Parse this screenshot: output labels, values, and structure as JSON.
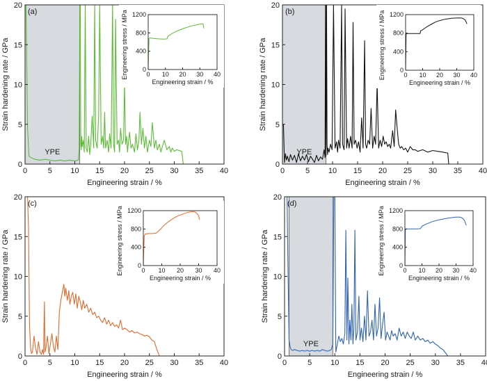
{
  "chart_data": [
    {
      "id": "a",
      "type": "line",
      "panel_label": "(a)",
      "color": "#5cbb35",
      "xlabel": "Engineering strain / %",
      "ylabel": "Strain hardening rate / GPa",
      "xlim": [
        0,
        40
      ],
      "ylim": [
        0,
        20
      ],
      "xticks": [
        "0",
        "5",
        "10",
        "15",
        "20",
        "25",
        "30",
        "35",
        "40"
      ],
      "yticks": [
        "0",
        "5",
        "10",
        "15",
        "20"
      ],
      "shaded_region": {
        "x": [
          0,
          11.0
        ],
        "label": "YPE",
        "color": "#d7dbdf"
      },
      "series": [
        {
          "x": [
            0.2,
            0.5,
            0.8,
            1.2,
            2,
            3,
            4,
            5,
            6,
            7,
            8,
            9,
            10,
            10.7,
            10.9,
            11.0,
            11.1,
            11.2,
            11.3,
            11.4,
            11.5,
            11.7,
            11.9,
            12.1,
            12.3,
            12.5,
            12.8,
            13.0,
            13.2,
            13.5,
            13.8,
            14.0,
            14.2,
            14.5,
            14.8,
            15.0,
            15.3,
            15.6,
            15.8,
            16.0,
            16.2,
            16.5,
            16.8,
            17.0,
            17.3,
            17.6,
            17.8,
            18.0,
            18.2,
            18.5,
            18.8,
            19.0,
            19.2,
            19.5,
            19.8,
            20.0,
            20.2,
            20.4,
            20.6,
            20.8,
            21.0,
            21.3,
            21.6,
            22.0,
            22.3,
            22.6,
            22.9,
            23.1,
            23.4,
            23.7,
            24.0,
            24.3,
            24.6,
            25.0,
            25.3,
            25.6,
            26.0,
            26.3,
            26.6,
            27.0,
            27.3,
            27.6,
            28.0,
            28.5,
            29.0,
            29.3,
            29.6,
            30.0,
            30.5,
            31.0,
            31.5,
            31.8
          ],
          "y": [
            20,
            4.5,
            1.0,
            0.8,
            0.6,
            0.5,
            0.6,
            0.5,
            0.4,
            0.5,
            0.4,
            0.5,
            0.4,
            0.5,
            2.0,
            20,
            20,
            2.5,
            1.8,
            3.5,
            2.2,
            3.0,
            1.5,
            20,
            2.0,
            1.5,
            3.5,
            1.2,
            2.5,
            6.0,
            2.0,
            20,
            3.0,
            2.0,
            6.0,
            20,
            2.5,
            3.5,
            2.0,
            6.5,
            2.0,
            3.0,
            1.5,
            3.8,
            2.0,
            20,
            2.5,
            1.5,
            18.2,
            2.5,
            3.0,
            1.5,
            4.5,
            2.5,
            3.0,
            10.3,
            2.5,
            3.5,
            1.5,
            2.8,
            4.0,
            2.0,
            2.5,
            1.5,
            3.8,
            1.8,
            3.0,
            6.5,
            2.5,
            4.5,
            2.0,
            3.5,
            1.5,
            3.0,
            2.2,
            5.2,
            2.0,
            3.0,
            1.8,
            2.5,
            1.5,
            2.2,
            3.0,
            1.8,
            2.2,
            1.5,
            2.0,
            1.6,
            1.8,
            1.7,
            1.6,
            0
          ]
        }
      ],
      "inset": {
        "xlabel": "Engineering strain / %",
        "ylabel": "Engineering stress / MPa",
        "xlim": [
          0,
          40
        ],
        "ylim": [
          0,
          1200
        ],
        "xticks": [
          "0",
          "10",
          "20",
          "30",
          "40"
        ],
        "yticks": [
          "0",
          "400",
          "800",
          "1200"
        ],
        "x": [
          0,
          0.5,
          1,
          3,
          6,
          9,
          11,
          11.2,
          12,
          14,
          16,
          18,
          20,
          22,
          24,
          26,
          28,
          30,
          31.5,
          32,
          32.3
        ],
        "y": [
          0,
          680,
          690,
          680,
          670,
          665,
          670,
          710,
          740,
          790,
          830,
          860,
          890,
          915,
          940,
          960,
          975,
          990,
          1000,
          985,
          900
        ]
      }
    },
    {
      "id": "b",
      "type": "line",
      "panel_label": "(b)",
      "color": "#111111",
      "xlabel": "Engineering strain / %",
      "ylabel": "Strain hardening rate / GPa",
      "xlim": [
        0,
        40
      ],
      "ylim": [
        0,
        20
      ],
      "xticks": [
        "0",
        "5",
        "10",
        "15",
        "20",
        "25",
        "30",
        "35",
        "40"
      ],
      "yticks": [
        "0",
        "5",
        "10",
        "15",
        "20"
      ],
      "shaded_region": {
        "x": [
          0,
          8.7
        ],
        "label": "YPE",
        "color": "#d7dbdf"
      },
      "series": [
        {
          "x": [
            0.2,
            0.4,
            0.6,
            0.8,
            1.0,
            1.3,
            1.6,
            2.0,
            2.4,
            2.8,
            3.2,
            3.6,
            4.0,
            4.4,
            4.8,
            5.2,
            5.6,
            6.0,
            6.4,
            6.8,
            7.2,
            7.6,
            8.0,
            8.3,
            8.5,
            8.6,
            8.7,
            8.8,
            8.9,
            9.0,
            9.1,
            9.3,
            9.6,
            9.9,
            10.2,
            10.5,
            10.8,
            11.0,
            11.2,
            11.5,
            11.8,
            12.0,
            12.3,
            12.5,
            12.8,
            13.0,
            13.3,
            13.6,
            13.9,
            14.1,
            14.3,
            14.6,
            14.9,
            15.2,
            15.5,
            15.8,
            16.1,
            16.4,
            16.6,
            16.8,
            17.1,
            17.4,
            17.7,
            18.0,
            18.3,
            18.6,
            18.9,
            19.2,
            19.5,
            19.8,
            20.1,
            20.4,
            20.7,
            21.0,
            21.3,
            21.6,
            22.0,
            22.3,
            22.6,
            22.9,
            23.2,
            23.5,
            23.8,
            24.2,
            24.6,
            25.0,
            25.5,
            26.0,
            26.5,
            27.0,
            27.5,
            28,
            29,
            30,
            31,
            32,
            32.8,
            33.0,
            33.2
          ],
          "y": [
            5.0,
            0.2,
            1.3,
            0.5,
            1.0,
            0.3,
            1.2,
            0.5,
            1.1,
            0.2,
            1.3,
            0.4,
            1.0,
            0.5,
            1.2,
            0.3,
            1.0,
            0.6,
            0.2,
            1.1,
            0.4,
            0.9,
            0.6,
            1.8,
            0.8,
            20,
            1.0,
            20,
            2.5,
            1.2,
            2.0,
            1.5,
            2.5,
            1.8,
            20,
            2.0,
            2.8,
            1.5,
            3.0,
            2.0,
            20,
            2.5,
            1.8,
            19.5,
            2.0,
            3.2,
            2.0,
            3.5,
            2.0,
            17.8,
            2.5,
            3.0,
            2.0,
            2.8,
            1.5,
            5.8,
            2.0,
            15.5,
            2.5,
            2.0,
            3.0,
            2.5,
            7.0,
            2.0,
            3.5,
            2.5,
            10.2,
            2.0,
            3.0,
            2.2,
            3.5,
            2.5,
            2.8,
            2.2,
            2.5,
            2.0,
            4.2,
            2.2,
            6.8,
            4.5,
            2.5,
            2.0,
            2.2,
            1.8,
            2.0,
            1.5,
            2.2,
            1.8,
            1.8,
            1.6,
            1.7,
            1.8,
            1.5,
            1.7,
            1.6,
            1.5,
            1.4,
            1.4,
            0
          ]
        }
      ],
      "inset": {
        "xlabel": "Engineering strain / %",
        "ylabel": "Engineering stress / MPa",
        "xlim": [
          0,
          40
        ],
        "ylim": [
          0,
          1200
        ],
        "xticks": [
          "0",
          "10",
          "20",
          "30",
          "40"
        ],
        "yticks": [
          "0",
          "400",
          "800",
          "1200"
        ],
        "x": [
          0,
          0.3,
          1,
          3,
          6,
          8.5,
          8.8,
          9.5,
          11,
          13,
          15,
          17,
          19,
          21,
          23,
          25,
          27,
          29,
          31,
          33,
          34,
          35,
          36
        ],
        "y": [
          0,
          780,
          790,
          790,
          790,
          790,
          850,
          860,
          900,
          950,
          990,
          1030,
          1060,
          1080,
          1100,
          1110,
          1120,
          1125,
          1130,
          1125,
          1110,
          1080,
          1000
        ]
      }
    },
    {
      "id": "c",
      "type": "line",
      "panel_label": "(c)",
      "color": "#e06a2c",
      "xlabel": "Engineering strain / %",
      "ylabel": "Strain hardening rate / GPa",
      "xlim": [
        0,
        40
      ],
      "ylim": [
        0,
        20
      ],
      "xticks": [
        "0",
        "5",
        "10",
        "15",
        "20",
        "25",
        "30",
        "35",
        "40"
      ],
      "yticks": [
        "0",
        "5",
        "10",
        "15",
        "20"
      ],
      "series": [
        {
          "x": [
            0.5,
            0.7,
            0.9,
            1.1,
            1.3,
            1.5,
            1.8,
            2.1,
            2.4,
            2.7,
            3.0,
            3.3,
            3.5,
            3.7,
            3.9,
            4.0,
            4.2,
            4.5,
            4.8,
            5.1,
            5.4,
            5.7,
            6.0,
            6.3,
            6.6,
            6.9,
            7.2,
            7.5,
            7.8,
            8.0,
            8.2,
            8.5,
            8.8,
            9.0,
            9.3,
            9.6,
            9.9,
            10.2,
            10.5,
            10.8,
            11.1,
            11.4,
            11.7,
            12.0,
            12.4,
            12.8,
            13.2,
            13.6,
            14.0,
            14.4,
            14.8,
            15.2,
            15.6,
            16.0,
            16.4,
            16.8,
            17.2,
            17.6,
            18.0,
            18.4,
            18.8,
            19.2,
            19.6,
            20.0,
            20.5,
            21.0,
            21.5,
            22.0,
            22.5,
            23.0,
            23.5,
            24.0,
            24.5,
            25.0,
            25.5,
            26.0,
            26.5,
            27.0
          ],
          "y": [
            20,
            16,
            4.0,
            1.0,
            0.3,
            0.5,
            2.5,
            1.0,
            0.2,
            1.8,
            0.5,
            0.2,
            0.8,
            0.2,
            6.8,
            0.5,
            1.0,
            2.5,
            0.3,
            1.5,
            2.8,
            1.2,
            0.5,
            2.5,
            0.8,
            5.5,
            7.0,
            8.0,
            9.0,
            7.5,
            8.5,
            7.0,
            8.2,
            6.5,
            7.5,
            8.0,
            6.5,
            7.8,
            6.0,
            7.5,
            6.8,
            5.8,
            7.0,
            6.0,
            6.5,
            5.5,
            6.0,
            5.2,
            5.5,
            4.8,
            5.0,
            4.5,
            4.2,
            4.8,
            4.0,
            4.5,
            3.8,
            4.2,
            3.7,
            3.9,
            3.5,
            4.5,
            3.3,
            3.5,
            3.3,
            3.0,
            3.2,
            2.9,
            3.0,
            2.8,
            2.7,
            2.5,
            2.6,
            2.4,
            2.0,
            1.8,
            0.8,
            0
          ]
        }
      ],
      "inset": {
        "xlabel": "Engineering strain / %",
        "ylabel": "Engineering stress / MPa",
        "xlim": [
          0,
          40
        ],
        "ylim": [
          0,
          1200
        ],
        "xticks": [
          "0",
          "10",
          "20",
          "30",
          "40"
        ],
        "yticks": [
          "0",
          "400",
          "800",
          "1200"
        ],
        "x": [
          0,
          0.5,
          1,
          3,
          5,
          7,
          9,
          11,
          13,
          15,
          17,
          19,
          21,
          23,
          25,
          27,
          28,
          29,
          30,
          30.5
        ],
        "y": [
          0,
          650,
          690,
          700,
          700,
          710,
          780,
          870,
          940,
          1000,
          1050,
          1090,
          1120,
          1150,
          1170,
          1180,
          1170,
          1140,
          1090,
          1000
        ]
      }
    },
    {
      "id": "d",
      "type": "line",
      "panel_label": "(d)",
      "color": "#2f63b0",
      "xlabel": "Engineering strain / %",
      "ylabel": "Strain hardening rate / GPa",
      "xlim": [
        0,
        40
      ],
      "ylim": [
        0,
        20
      ],
      "xticks": [
        "0",
        "5",
        "10",
        "15",
        "20",
        "25",
        "30",
        "35",
        "40"
      ],
      "yticks": [
        "0",
        "5",
        "10",
        "15",
        "20"
      ],
      "shaded_region": {
        "x": [
          0.9,
          9.6
        ],
        "label": "YPE",
        "color": "#d7dbdf"
      },
      "series": [
        {
          "x": [
            0.5,
            0.7,
            0.9,
            1.1,
            1.3,
            1.6,
            2,
            2.5,
            3,
            3.5,
            4,
            4.5,
            5,
            5.5,
            6,
            6.5,
            7,
            7.5,
            8,
            8.5,
            9,
            9.3,
            9.6,
            9.8,
            10.0,
            10.2,
            10.5,
            10.8,
            11.1,
            11.4,
            11.7,
            12.0,
            12.2,
            12.4,
            12.6,
            12.8,
            13.0,
            13.2,
            13.4,
            13.6,
            13.8,
            14.0,
            14.2,
            14.5,
            14.8,
            15.0,
            15.3,
            15.6,
            15.9,
            16.2,
            16.5,
            16.8,
            17.1,
            17.4,
            17.7,
            18.0,
            18.3,
            18.6,
            18.9,
            19.2,
            19.5,
            19.8,
            20.1,
            20.4,
            20.7,
            21.0,
            21.3,
            21.6,
            22.0,
            22.4,
            22.8,
            23.2,
            23.6,
            24.0,
            24.4,
            24.8,
            25.2,
            25.6,
            26.0,
            26.5,
            27.0,
            27.5,
            28.0,
            28.5,
            29.0,
            29.5,
            30,
            30.5,
            31,
            31.5,
            32,
            32.5
          ],
          "y": [
            20,
            10,
            2.0,
            1.2,
            0.8,
            0.7,
            0.8,
            0.7,
            0.6,
            0.7,
            0.6,
            0.7,
            0.6,
            0.7,
            0.6,
            0.7,
            0.6,
            0.8,
            0.7,
            0.6,
            0.7,
            0.8,
            1.5,
            20,
            20,
            0.5,
            1.5,
            2.5,
            1.8,
            2.2,
            1.5,
            2.8,
            15.8,
            2.0,
            9.8,
            1.5,
            4.5,
            2.0,
            6.5,
            1.5,
            3.5,
            15.8,
            2.0,
            3.0,
            7.5,
            2.0,
            3.5,
            1.8,
            5.0,
            2.0,
            8.2,
            2.5,
            3.0,
            4.5,
            2.0,
            6.5,
            2.5,
            3.5,
            7.3,
            2.2,
            4.0,
            5.5,
            2.0,
            3.0,
            2.5,
            2.0,
            3.2,
            2.5,
            2.8,
            2.0,
            3.5,
            2.5,
            3.0,
            2.2,
            3.0,
            2.5,
            2.2,
            3.0,
            2.0,
            2.5,
            2.0,
            2.2,
            1.8,
            2.0,
            1.6,
            1.8,
            1.5,
            1.3,
            1.0,
            0.8,
            0.4,
            0
          ]
        }
      ],
      "inset": {
        "xlabel": "Engineering strain / %",
        "ylabel": "Engineering stress / MPa",
        "xlim": [
          0,
          40
        ],
        "ylim": [
          0,
          1200
        ],
        "xticks": [
          "0",
          "10",
          "20",
          "30",
          "40"
        ],
        "yticks": [
          "0",
          "400",
          "800",
          "1200"
        ],
        "x": [
          0,
          0.3,
          1,
          3,
          6,
          9,
          9.5,
          10,
          12,
          14,
          16,
          18,
          20,
          22,
          24,
          26,
          28,
          30,
          32,
          33,
          34,
          35,
          36
        ],
        "y": [
          0,
          790,
          800,
          800,
          800,
          805,
          830,
          860,
          900,
          930,
          960,
          980,
          1000,
          1015,
          1030,
          1040,
          1050,
          1060,
          1060,
          1050,
          1030,
          980,
          880
        ]
      }
    }
  ]
}
